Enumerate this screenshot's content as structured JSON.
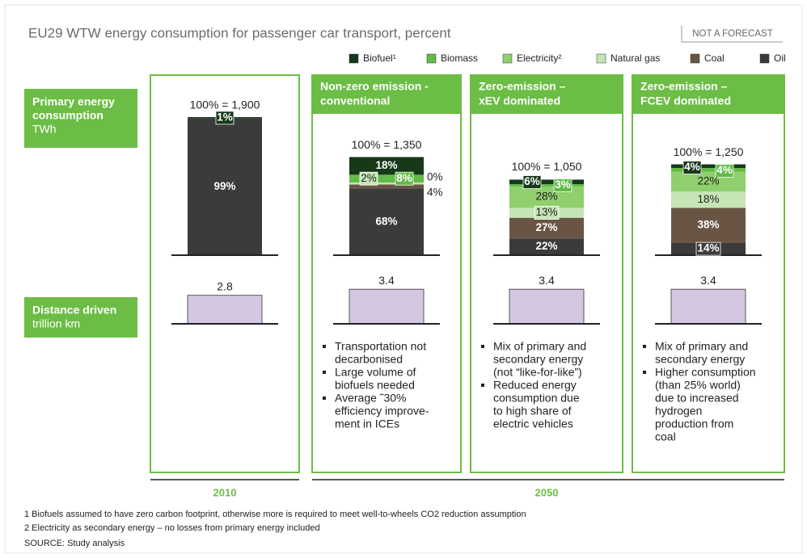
{
  "chart_data": {
    "type": "stacked-bar",
    "title": "EU29 WTW energy consumption for passenger car transport, percent",
    "tag": "NOT A FORECAST",
    "row_labels": [
      {
        "title": [
          "Primary energy",
          "consumption"
        ],
        "unit": "TWh"
      },
      {
        "title": [
          "Distance driven"
        ],
        "unit": "trillion km"
      }
    ],
    "series": [
      {
        "name": "Biofuel¹",
        "color": "#17391a",
        "values": [
          1,
          18,
          6,
          4
        ],
        "value_labels": [
          "1%",
          "18%",
          "6%",
          "4%"
        ]
      },
      {
        "name": "Biomass",
        "color": "#62bb46",
        "values": [
          0,
          8,
          3,
          4
        ],
        "value_labels": [
          null,
          "8%",
          "3%",
          "4%"
        ]
      },
      {
        "name": "Electricity²",
        "color": "#8fcf6e",
        "values": [
          0,
          0,
          28,
          22
        ],
        "value_labels": [
          null,
          "0%",
          "28%",
          "22%"
        ]
      },
      {
        "name": "Natural gas",
        "color": "#c6e5b5",
        "values": [
          0,
          2,
          13,
          18
        ],
        "value_labels": [
          null,
          "2%",
          "13%",
          "18%"
        ]
      },
      {
        "name": "Coal",
        "color": "#6a5545",
        "values": [
          0,
          4,
          27,
          38
        ],
        "value_labels": [
          null,
          "4%",
          "27%",
          "38%"
        ]
      },
      {
        "name": "Oil",
        "color": "#3b3b3b",
        "values": [
          99,
          68,
          22,
          14
        ],
        "value_labels": [
          "99%",
          "68%",
          "22%",
          "14%"
        ]
      }
    ],
    "panels": [
      {
        "total": 1900,
        "total_label": "100% = 1,900",
        "distance": 2.8,
        "bullets": []
      },
      {
        "header": [
          "Non-zero emission -",
          "conventional"
        ],
        "total": 1350,
        "total_label": "100% = 1,350",
        "distance": 3.4,
        "bullets": [
          [
            "Transportation not",
            "decarbonised"
          ],
          [
            "Large volume of",
            "biofuels needed"
          ],
          [
            "Average ˜30%",
            "efficiency  improve-",
            "ment in ICEs"
          ]
        ]
      },
      {
        "header": [
          "Zero-emission –",
          "xEV dominated"
        ],
        "total": 1050,
        "total_label": "100% = 1,050",
        "distance": 3.4,
        "bullets": [
          [
            "Mix of primary and",
            "secondary energy",
            "(not “like-for-like”)"
          ],
          [
            "Reduced energy",
            "consumption due",
            "to high share of",
            "electric vehicles"
          ]
        ]
      },
      {
        "header": [
          "Zero-emission –",
          "FCEV dominated"
        ],
        "total": 1250,
        "total_label": "100% = 1,250",
        "distance": 3.4,
        "bullets": [
          [
            "Mix of primary and",
            "secondary energy"
          ],
          [
            "Higher consumption",
            "(than 25% world)",
            "due to increased",
            "hydrogen",
            "production from",
            "coal"
          ]
        ]
      }
    ],
    "years": [
      "2010",
      "2050"
    ],
    "footnotes": [
      "1 Biofuels assumed to have zero carbon footprint, otherwise more is required to meet well-to-wheels CO2 reduction assumption",
      "2 Electricity as secondary energy – no losses from primary energy included",
      "SOURCE: Study analysis"
    ]
  }
}
